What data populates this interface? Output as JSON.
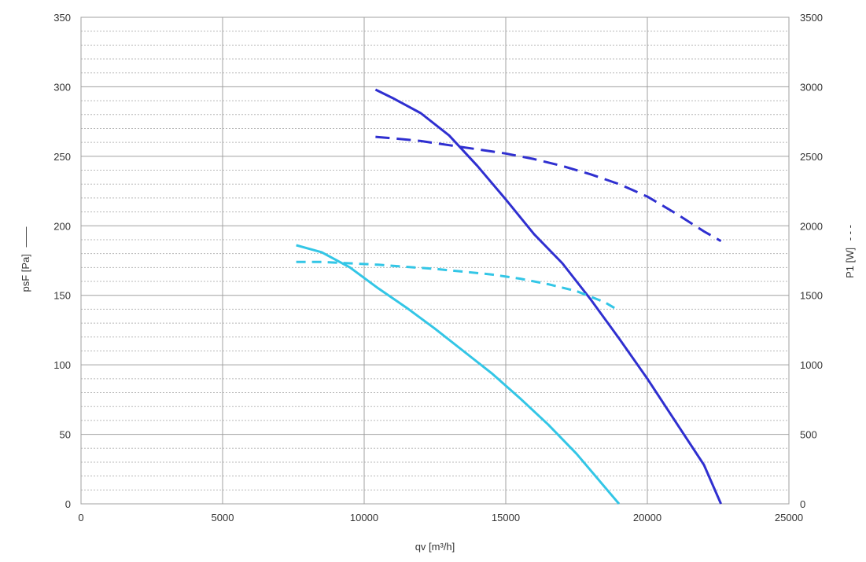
{
  "chart_data": {
    "type": "line",
    "title": "",
    "xlabel": "qv [m³/h]",
    "ylabel_left": "psF [Pa]",
    "ylabel_left_marker": "——",
    "ylabel_right": "P1 [W]",
    "ylabel_right_marker": "- - -",
    "xlim": [
      0,
      25000
    ],
    "ylim_left": [
      0,
      350
    ],
    "ylim_right": [
      0,
      3500
    ],
    "xticks": [
      0,
      5000,
      10000,
      15000,
      20000,
      25000
    ],
    "yticks_left": [
      0,
      50,
      100,
      150,
      200,
      250,
      300,
      350
    ],
    "yticks_right": [
      0,
      500,
      1000,
      1500,
      2000,
      2500,
      3000,
      3500
    ],
    "grid": true,
    "minor_grid_step_left": 10,
    "legend": "none",
    "series": [
      {
        "axis": "left",
        "style": "solid",
        "color": "#2f2fd0",
        "x": [
          10400,
          11000,
          12000,
          13000,
          14000,
          15000,
          16000,
          17000,
          18000,
          19000,
          20000,
          21000,
          22000,
          22600
        ],
        "y": [
          298,
          292,
          281,
          265,
          243,
          219,
          194,
          173,
          147,
          119,
          90,
          59,
          28,
          0
        ]
      },
      {
        "axis": "right",
        "style": "dashed",
        "color": "#2f2fd0",
        "x": [
          10400,
          11000,
          12000,
          13000,
          14000,
          15000,
          16000,
          17000,
          18000,
          19000,
          20000,
          21000,
          22000,
          22600
        ],
        "y": [
          2640,
          2630,
          2610,
          2580,
          2550,
          2520,
          2480,
          2430,
          2370,
          2300,
          2210,
          2090,
          1960,
          1890
        ]
      },
      {
        "axis": "left",
        "style": "solid",
        "color": "#33c6e6",
        "x": [
          7600,
          8500,
          9500,
          10500,
          11500,
          12500,
          13500,
          14500,
          15500,
          16500,
          17500,
          18500,
          19000
        ],
        "y": [
          186,
          181,
          170,
          155,
          141,
          126,
          110,
          94,
          76,
          57,
          36,
          12,
          0
        ]
      },
      {
        "axis": "right",
        "style": "dashed",
        "color": "#33c6e6",
        "x": [
          7600,
          8500,
          9500,
          10500,
          11500,
          12500,
          13500,
          14500,
          15500,
          16500,
          17500,
          18500,
          19000
        ],
        "y": [
          1740,
          1740,
          1730,
          1720,
          1705,
          1690,
          1670,
          1650,
          1620,
          1580,
          1530,
          1450,
          1390
        ]
      }
    ]
  }
}
